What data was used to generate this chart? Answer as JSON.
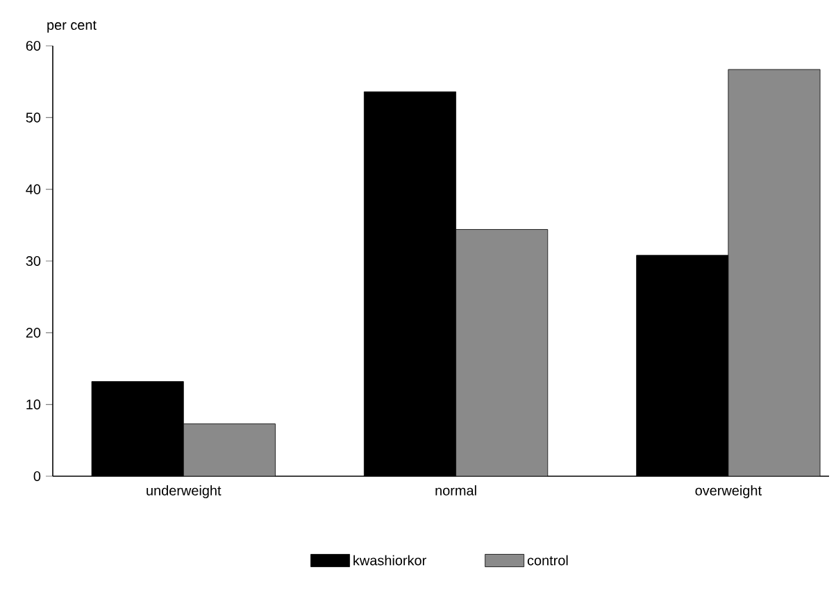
{
  "chart_data": {
    "type": "bar",
    "ylabel": "per cent",
    "categories": [
      "underweight",
      "normal",
      "overweight"
    ],
    "series": [
      {
        "name": "kwashiorkor",
        "color": "#000000",
        "values": [
          13.2,
          53.6,
          30.8
        ]
      },
      {
        "name": "control",
        "color": "#8a8a8a",
        "values": [
          7.3,
          34.4,
          56.7
        ]
      }
    ],
    "ylim": [
      0,
      60
    ],
    "yticks": [
      0,
      10,
      20,
      30,
      40,
      50,
      60
    ],
    "legend": "bottom",
    "grid": false
  }
}
